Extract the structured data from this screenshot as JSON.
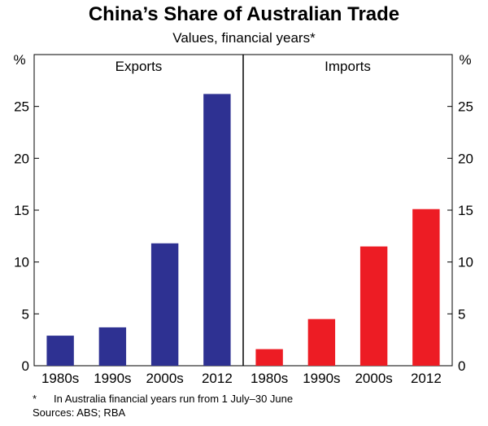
{
  "title": "China’s Share of Australian Trade",
  "subtitle": "Values, financial years*",
  "footnotes": {
    "star": "*",
    "note": "In Australia financial years run from 1 July–30 June",
    "sources": "Sources: ABS; RBA"
  },
  "colors": {
    "exports": "#2e3192",
    "imports": "#ed1c24"
  },
  "chart_data": {
    "type": "bar",
    "title": "China’s Share of Australian Trade",
    "subtitle": "Values, financial years*",
    "yunit": "%",
    "ylim": [
      0,
      30
    ],
    "yticks": [
      0,
      5,
      10,
      15,
      20,
      25
    ],
    "grid": false,
    "panels": [
      {
        "name": "Exports",
        "categories": [
          "1980s",
          "1990s",
          "2000s",
          "2012"
        ],
        "values": [
          2.9,
          3.7,
          11.8,
          26.2
        ]
      },
      {
        "name": "Imports",
        "categories": [
          "1980s",
          "1990s",
          "2000s",
          "2012"
        ],
        "values": [
          1.6,
          4.5,
          11.5,
          15.1
        ]
      }
    ]
  }
}
